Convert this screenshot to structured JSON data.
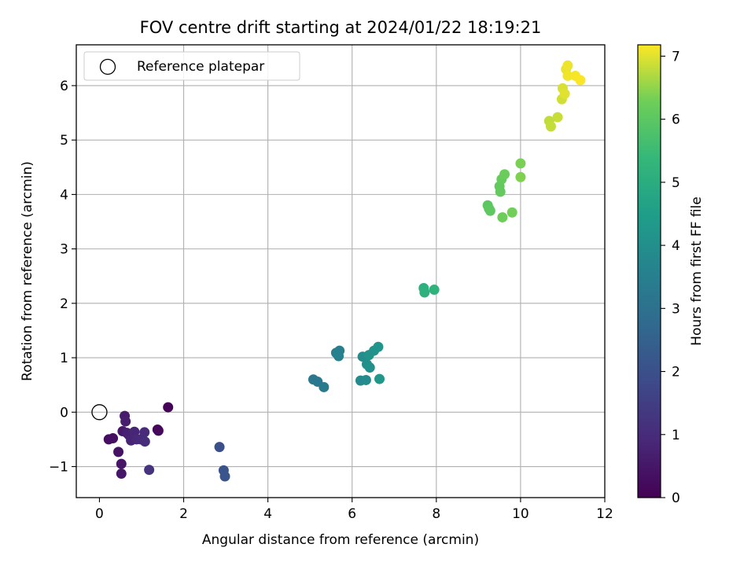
{
  "chart_data": {
    "type": "scatter",
    "title": "FOV centre drift starting at 2024/01/22 18:19:21",
    "xlabel": "Angular distance from reference (arcmin)",
    "ylabel": "Rotation from reference (arcmin)",
    "xlim": [
      -0.55,
      12.0
    ],
    "ylim": [
      -1.57,
      6.75
    ],
    "xticks": [
      0,
      2,
      4,
      6,
      8,
      10,
      12
    ],
    "yticks": [
      -1,
      0,
      1,
      2,
      3,
      4,
      5,
      6
    ],
    "grid": true,
    "legend": {
      "position": "top-left",
      "entries": [
        {
          "label": "Reference platepar",
          "marker": "open-circle"
        }
      ]
    },
    "reference_point": {
      "x": 0.0,
      "y": 0.0
    },
    "colorbar": {
      "label": "Hours from first FF file",
      "min": 0,
      "max": 7.18,
      "ticks": [
        0,
        1,
        2,
        3,
        4,
        5,
        6,
        7
      ],
      "colormap": "viridis"
    },
    "series": [
      {
        "points": [
          {
            "x": 1.63,
            "y": 0.09,
            "c": 0.05
          },
          {
            "x": 1.38,
            "y": -0.32,
            "c": 0.1
          },
          {
            "x": 1.4,
            "y": -0.34,
            "c": 0.15
          },
          {
            "x": 0.22,
            "y": -0.5,
            "c": 0.3
          },
          {
            "x": 0.32,
            "y": -0.48,
            "c": 0.35
          },
          {
            "x": 0.45,
            "y": -0.73,
            "c": 0.4
          },
          {
            "x": 0.52,
            "y": -0.95,
            "c": 0.45
          },
          {
            "x": 0.52,
            "y": -1.13,
            "c": 0.5
          },
          {
            "x": 0.55,
            "y": -0.35,
            "c": 0.55
          },
          {
            "x": 0.6,
            "y": -0.07,
            "c": 0.6
          },
          {
            "x": 0.62,
            "y": -0.17,
            "c": 0.65
          },
          {
            "x": 0.65,
            "y": -0.38,
            "c": 0.7
          },
          {
            "x": 0.7,
            "y": -0.42,
            "c": 0.75
          },
          {
            "x": 0.75,
            "y": -0.52,
            "c": 0.8
          },
          {
            "x": 0.83,
            "y": -0.36,
            "c": 0.85
          },
          {
            "x": 0.88,
            "y": -0.5,
            "c": 0.9
          },
          {
            "x": 0.98,
            "y": -0.5,
            "c": 0.95
          },
          {
            "x": 1.07,
            "y": -0.37,
            "c": 1.0
          },
          {
            "x": 1.08,
            "y": -0.54,
            "c": 1.05
          },
          {
            "x": 1.18,
            "y": -1.06,
            "c": 1.2
          },
          {
            "x": 2.85,
            "y": -0.64,
            "c": 2.0
          },
          {
            "x": 2.95,
            "y": -1.07,
            "c": 2.1
          },
          {
            "x": 2.98,
            "y": -1.18,
            "c": 2.15
          },
          {
            "x": 5.08,
            "y": 0.6,
            "c": 3.2
          },
          {
            "x": 5.18,
            "y": 0.56,
            "c": 3.25
          },
          {
            "x": 5.33,
            "y": 0.46,
            "c": 3.3
          },
          {
            "x": 5.62,
            "y": 1.09,
            "c": 3.45
          },
          {
            "x": 5.7,
            "y": 1.13,
            "c": 3.5
          },
          {
            "x": 5.68,
            "y": 1.03,
            "c": 3.55
          },
          {
            "x": 6.2,
            "y": 0.58,
            "c": 3.85
          },
          {
            "x": 6.33,
            "y": 0.59,
            "c": 3.9
          },
          {
            "x": 6.25,
            "y": 1.02,
            "c": 3.95
          },
          {
            "x": 6.35,
            "y": 0.88,
            "c": 4.0
          },
          {
            "x": 6.42,
            "y": 0.82,
            "c": 4.05
          },
          {
            "x": 6.4,
            "y": 1.05,
            "c": 4.1
          },
          {
            "x": 6.52,
            "y": 1.13,
            "c": 4.15
          },
          {
            "x": 6.62,
            "y": 1.2,
            "c": 4.2
          },
          {
            "x": 6.65,
            "y": 0.61,
            "c": 4.25
          },
          {
            "x": 7.7,
            "y": 2.28,
            "c": 5.1
          },
          {
            "x": 7.72,
            "y": 2.2,
            "c": 5.15
          },
          {
            "x": 7.95,
            "y": 2.25,
            "c": 5.2
          },
          {
            "x": 9.22,
            "y": 3.8,
            "c": 6.0
          },
          {
            "x": 9.25,
            "y": 3.74,
            "c": 6.02
          },
          {
            "x": 9.28,
            "y": 3.7,
            "c": 6.05
          },
          {
            "x": 9.5,
            "y": 4.15,
            "c": 6.1
          },
          {
            "x": 9.52,
            "y": 4.05,
            "c": 6.12
          },
          {
            "x": 9.55,
            "y": 4.28,
            "c": 6.15
          },
          {
            "x": 9.62,
            "y": 4.37,
            "c": 6.2
          },
          {
            "x": 9.57,
            "y": 3.58,
            "c": 6.25
          },
          {
            "x": 9.8,
            "y": 3.67,
            "c": 6.3
          },
          {
            "x": 10.0,
            "y": 4.57,
            "c": 6.35
          },
          {
            "x": 10.0,
            "y": 4.32,
            "c": 6.4
          },
          {
            "x": 10.68,
            "y": 5.35,
            "c": 6.8
          },
          {
            "x": 10.72,
            "y": 5.25,
            "c": 6.82
          },
          {
            "x": 10.88,
            "y": 5.42,
            "c": 6.85
          },
          {
            "x": 10.98,
            "y": 5.75,
            "c": 6.9
          },
          {
            "x": 11.0,
            "y": 5.95,
            "c": 6.95
          },
          {
            "x": 11.05,
            "y": 5.85,
            "c": 7.0
          },
          {
            "x": 11.08,
            "y": 6.3,
            "c": 7.05
          },
          {
            "x": 11.12,
            "y": 6.37,
            "c": 7.08
          },
          {
            "x": 11.12,
            "y": 6.18,
            "c": 7.1
          },
          {
            "x": 11.3,
            "y": 6.18,
            "c": 7.13
          },
          {
            "x": 11.42,
            "y": 6.1,
            "c": 7.16
          }
        ]
      }
    ]
  }
}
